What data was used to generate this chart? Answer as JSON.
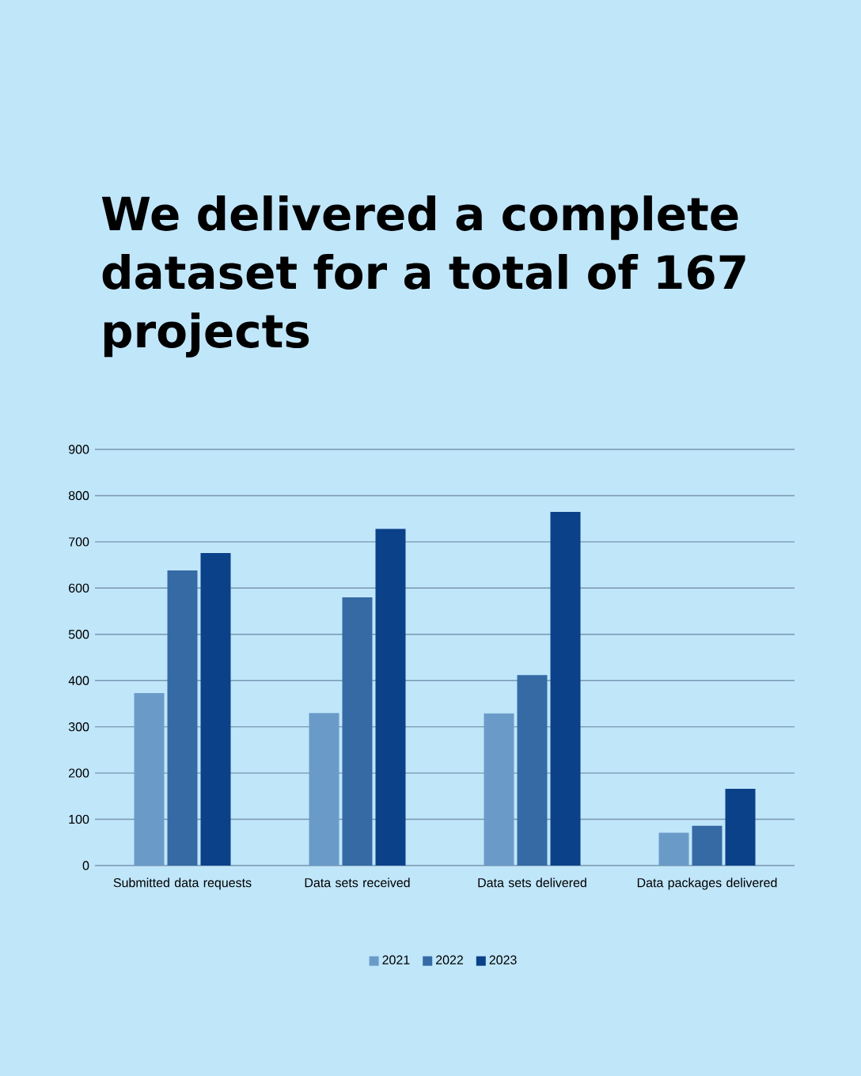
{
  "chart_data": {
    "type": "bar",
    "title": "We delivered a complete dataset for a total of 167 projects",
    "categories": [
      "Submitted data requests",
      "Data sets received",
      "Data sets delivered",
      "Data packages delivered"
    ],
    "series": [
      {
        "name": "2021",
        "color": "#6a9bc8",
        "values": [
          373,
          330,
          329,
          71
        ]
      },
      {
        "name": "2022",
        "color": "#356aa5",
        "values": [
          638,
          580,
          412,
          86
        ]
      },
      {
        "name": "2023",
        "color": "#0b4189",
        "values": [
          676,
          728,
          765,
          166
        ]
      }
    ],
    "ylim": [
      0,
      900
    ],
    "yticks": [
      0,
      100,
      200,
      300,
      400,
      500,
      600,
      700,
      800,
      900
    ],
    "grid": "y",
    "legend": "bottom"
  }
}
